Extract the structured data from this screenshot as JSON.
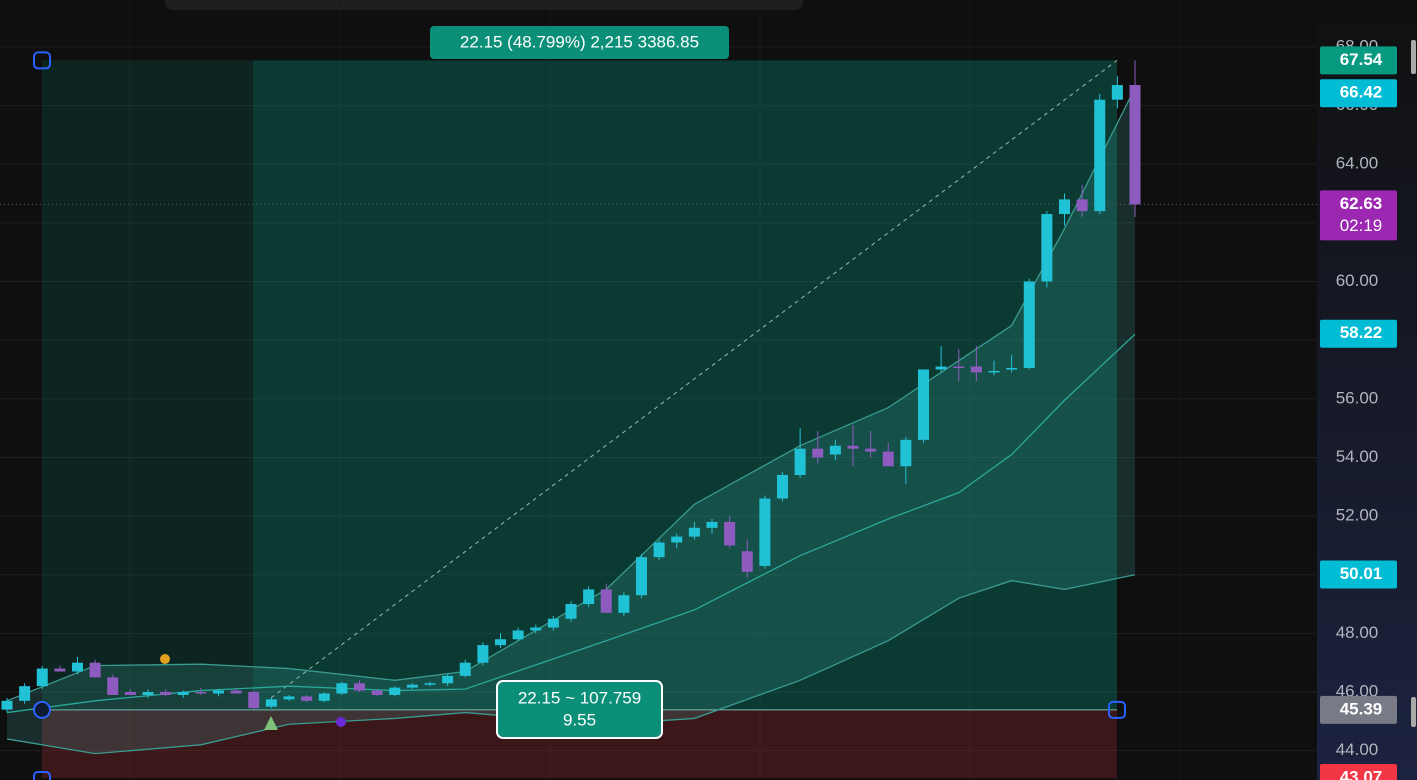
{
  "chart_data": {
    "type": "candlestick",
    "up_color": "#22c2d6",
    "down_color": "#8e5bbf",
    "ylim": [
      43.0,
      69.6
    ],
    "yticks": [
      {
        "value": 44,
        "label": "44.00"
      },
      {
        "value": 46,
        "label": "46.00"
      },
      {
        "value": 48,
        "label": "48.00"
      },
      {
        "value": 50,
        "label": "50.00"
      },
      {
        "value": 52,
        "label": "52.00"
      },
      {
        "value": 54,
        "label": "54.00"
      },
      {
        "value": 56,
        "label": "56.00"
      },
      {
        "value": 58,
        "label": "58.00"
      },
      {
        "value": 60,
        "label": "60.00"
      },
      {
        "value": 62,
        "label": "62.00"
      },
      {
        "value": 64,
        "label": "64.00"
      },
      {
        "value": 66,
        "label": "66.00"
      },
      {
        "value": 68,
        "label": "68.00"
      }
    ],
    "grid": true,
    "candles": [
      [
        45.4,
        45.8,
        45.3,
        45.7
      ],
      [
        45.7,
        46.3,
        45.6,
        46.2
      ],
      [
        46.2,
        46.9,
        46.1,
        46.8
      ],
      [
        46.8,
        46.9,
        46.7,
        46.7
      ],
      [
        46.7,
        47.2,
        46.6,
        47.0
      ],
      [
        47.0,
        47.1,
        46.5,
        46.5
      ],
      [
        46.5,
        46.6,
        45.9,
        45.9
      ],
      [
        46.0,
        46.1,
        45.9,
        45.9
      ],
      [
        45.9,
        46.1,
        45.8,
        46.0
      ],
      [
        46.0,
        46.1,
        45.85,
        45.9
      ],
      [
        45.9,
        46.05,
        45.8,
        46.0
      ],
      [
        46.0,
        46.15,
        45.9,
        45.95
      ],
      [
        45.95,
        46.1,
        45.85,
        46.05
      ],
      [
        46.05,
        46.15,
        45.95,
        45.95
      ],
      [
        46.0,
        46.05,
        45.4,
        45.45
      ],
      [
        45.5,
        45.8,
        45.45,
        45.75
      ],
      [
        45.75,
        45.9,
        45.7,
        45.85
      ],
      [
        45.85,
        45.9,
        45.65,
        45.7
      ],
      [
        45.7,
        46.0,
        45.65,
        45.95
      ],
      [
        45.95,
        46.35,
        45.9,
        46.3
      ],
      [
        46.3,
        46.4,
        46.0,
        46.05
      ],
      [
        46.05,
        46.1,
        45.85,
        45.9
      ],
      [
        45.9,
        46.2,
        45.85,
        46.15
      ],
      [
        46.15,
        46.3,
        46.1,
        46.25
      ],
      [
        46.25,
        46.35,
        46.2,
        46.3
      ],
      [
        46.3,
        46.6,
        46.2,
        46.55
      ],
      [
        46.55,
        47.1,
        46.5,
        47.0
      ],
      [
        47.0,
        47.7,
        46.9,
        47.6
      ],
      [
        47.6,
        48.0,
        47.5,
        47.8
      ],
      [
        47.8,
        48.2,
        47.75,
        48.1
      ],
      [
        48.1,
        48.3,
        48.0,
        48.2
      ],
      [
        48.2,
        48.6,
        48.1,
        48.5
      ],
      [
        48.5,
        49.1,
        48.4,
        49.0
      ],
      [
        49.0,
        49.6,
        48.9,
        49.5
      ],
      [
        49.5,
        49.7,
        48.7,
        48.7
      ],
      [
        48.7,
        49.4,
        48.6,
        49.3
      ],
      [
        49.3,
        50.7,
        49.2,
        50.6
      ],
      [
        50.6,
        51.2,
        50.5,
        51.1
      ],
      [
        51.1,
        51.4,
        50.9,
        51.3
      ],
      [
        51.3,
        51.8,
        51.2,
        51.6
      ],
      [
        51.6,
        51.9,
        51.4,
        51.8
      ],
      [
        51.8,
        52.0,
        50.9,
        51.0
      ],
      [
        50.8,
        51.2,
        49.9,
        50.1
      ],
      [
        50.3,
        52.7,
        50.2,
        52.6
      ],
      [
        52.6,
        53.5,
        52.5,
        53.4
      ],
      [
        53.4,
        55.0,
        53.3,
        54.3
      ],
      [
        54.3,
        54.9,
        53.8,
        54.0
      ],
      [
        54.1,
        54.6,
        53.9,
        54.4
      ],
      [
        54.4,
        55.1,
        53.7,
        54.3
      ],
      [
        54.3,
        54.9,
        54.0,
        54.2
      ],
      [
        54.2,
        54.5,
        53.7,
        53.7
      ],
      [
        53.7,
        54.7,
        53.1,
        54.6
      ],
      [
        54.6,
        57.0,
        54.5,
        57.0
      ],
      [
        57.0,
        57.8,
        56.9,
        57.1
      ],
      [
        57.1,
        57.7,
        56.6,
        57.05
      ],
      [
        57.1,
        57.8,
        56.6,
        56.9
      ],
      [
        56.9,
        57.3,
        56.8,
        56.95
      ],
      [
        57.0,
        57.5,
        56.9,
        57.05
      ],
      [
        57.05,
        60.1,
        57.0,
        60.0
      ],
      [
        60.0,
        62.4,
        59.8,
        62.3
      ],
      [
        62.3,
        63.0,
        61.9,
        62.8
      ],
      [
        62.8,
        63.3,
        62.2,
        62.4
      ],
      [
        62.4,
        66.4,
        62.3,
        66.2
      ],
      [
        66.2,
        67.0,
        65.9,
        66.7
      ],
      [
        66.7,
        67.54,
        62.2,
        62.63
      ]
    ],
    "bands": {
      "x": [
        0,
        5,
        11,
        16,
        22,
        26,
        34,
        39,
        45,
        50,
        54,
        57,
        60,
        64
      ],
      "upper": [
        45.7,
        46.9,
        46.95,
        46.8,
        46.4,
        46.7,
        49.5,
        52.4,
        54.4,
        55.7,
        57.3,
        58.5,
        61.8,
        66.6
      ],
      "middle": [
        45.3,
        45.7,
        46.05,
        46.2,
        46.05,
        46.1,
        47.75,
        48.8,
        50.65,
        51.9,
        52.8,
        54.1,
        55.95,
        58.2
      ],
      "lower": [
        44.4,
        43.9,
        44.2,
        44.9,
        45.1,
        45.3,
        44.9,
        45.1,
        46.4,
        47.75,
        49.2,
        49.8,
        49.5,
        50.0
      ]
    },
    "price_markers": [
      {
        "value": 67.54,
        "color": "#089981"
      },
      {
        "value": 66.42,
        "color": "#00bcd4"
      },
      {
        "value": 62.63,
        "color": "#9c27b0",
        "countdown": "02:19"
      },
      {
        "value": 58.22,
        "color": "#00bcd4"
      },
      {
        "value": 50.01,
        "color": "#00bcd4"
      },
      {
        "value": 45.39,
        "color": "#787b86"
      },
      {
        "value": 43.07,
        "color": "#f23645"
      }
    ],
    "measure": {
      "from": 45.39,
      "to": 67.54,
      "top_label": "22.15 (48.799%) 2,215 3386.85",
      "bottom_label": [
        "22.15 ~ 107.759",
        "9.55"
      ]
    }
  }
}
